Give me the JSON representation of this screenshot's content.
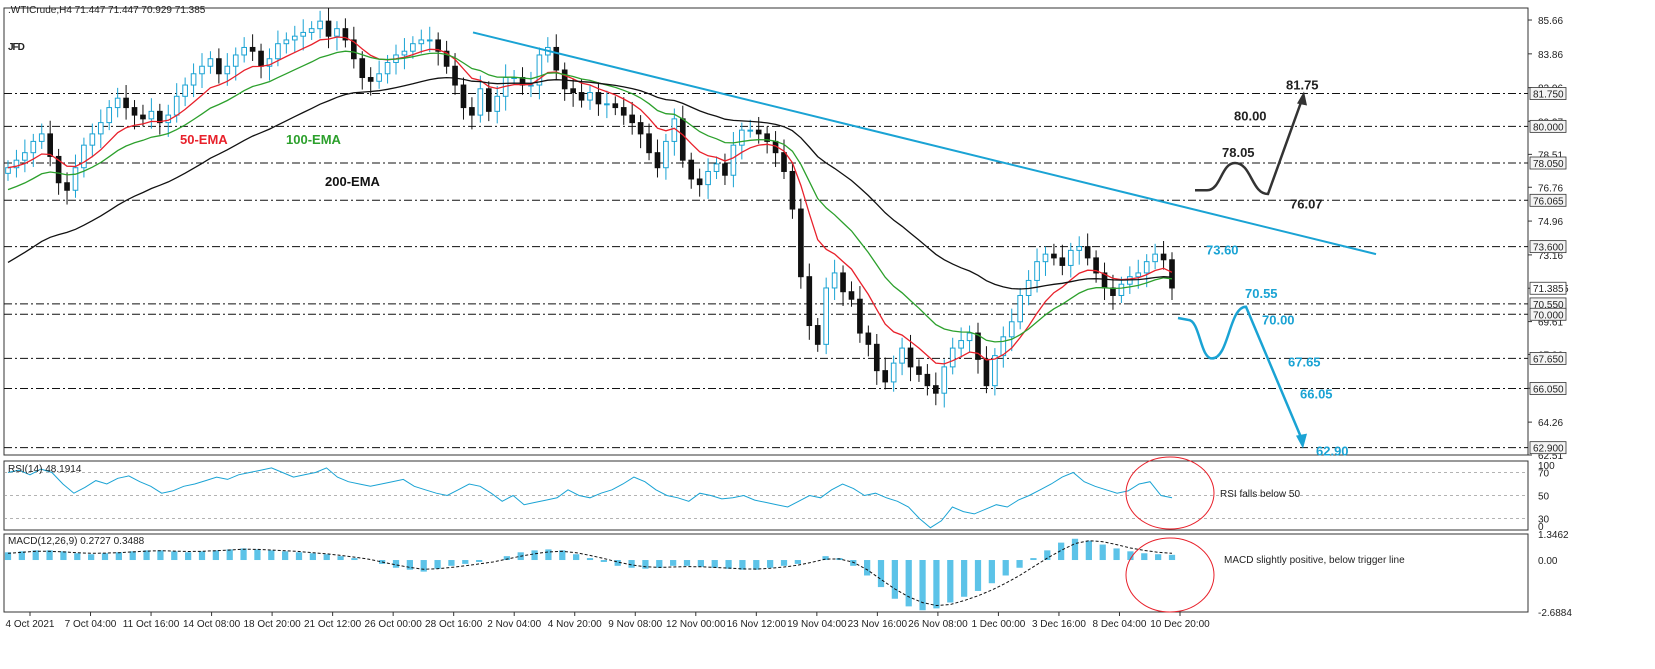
{
  "header": {
    "symbol_line": ".WTICrude,H4  71.447 71.447 70.929 71.385",
    "logo": "JFD"
  },
  "chart_data": [
    {
      "panel": "price",
      "type": "candlestick",
      "symbol": ".WTICrude",
      "timeframe": "H4",
      "ohlc_last": {
        "open": 71.447,
        "high": 71.447,
        "low": 70.929,
        "close": 71.385
      },
      "ylim": [
        62.51,
        86.3
      ],
      "y_ticks": [
        85.66,
        83.86,
        82.06,
        80.27,
        78.51,
        76.76,
        74.96,
        73.16,
        71.385,
        69.61,
        67.86,
        66.06,
        64.26,
        62.51
      ],
      "x_tick_labels": [
        "4 Oct 2021",
        "7 Oct 04:00",
        "11 Oct 16:00",
        "14 Oct 08:00",
        "18 Oct 20:00",
        "21 Oct 12:00",
        "26 Oct 00:00",
        "28 Oct 16:00",
        "2 Nov 04:00",
        "4 Nov 20:00",
        "9 Nov 08:00",
        "12 Nov 00:00",
        "16 Nov 12:00",
        "19 Nov 04:00",
        "23 Nov 16:00",
        "26 Nov 08:00",
        "1 Dec 00:00",
        "3 Dec 16:00",
        "8 Dec 04:00",
        "10 Dec 20:00"
      ],
      "close_path": [
        77.8,
        78.2,
        78.6,
        79.2,
        79.6,
        78.4,
        77.0,
        76.6,
        77.8,
        79.0,
        79.6,
        80.2,
        81.0,
        81.5,
        81.0,
        80.6,
        80.4,
        80.8,
        80.2,
        80.6,
        81.6,
        82.2,
        82.8,
        83.2,
        83.6,
        82.8,
        83.2,
        83.8,
        84.2,
        84.0,
        83.2,
        83.6,
        84.4,
        84.6,
        84.8,
        85.0,
        85.2,
        85.6,
        84.8,
        85.2,
        84.6,
        83.6,
        82.6,
        82.4,
        82.8,
        83.4,
        83.8,
        84.0,
        84.4,
        84.6,
        84.6,
        84.0,
        83.2,
        82.2,
        81.0,
        80.6,
        82.0,
        80.8,
        81.6,
        82.6,
        82.6,
        82.2,
        82.2,
        83.8,
        84.2,
        83.0,
        82.0,
        81.8,
        81.4,
        81.8,
        81.2,
        81.2,
        81.0,
        80.6,
        80.2,
        79.6,
        78.6,
        77.8,
        79.2,
        80.4,
        78.2,
        77.2,
        76.9,
        77.6,
        78.0,
        77.4,
        79.0,
        79.8,
        79.8,
        79.6,
        79.2,
        78.6,
        77.6,
        75.6,
        72.0,
        69.4,
        68.4,
        71.4,
        72.2,
        71.2,
        70.8,
        69.0,
        68.4,
        67.0,
        66.4,
        67.4,
        68.2,
        67.2,
        66.8,
        66.2,
        65.8,
        67.2,
        68.2,
        68.6,
        69.0,
        67.6,
        66.2,
        67.8,
        68.8,
        69.6,
        71.0,
        71.8,
        72.8,
        73.2,
        73.0,
        72.6,
        73.4,
        73.6,
        73.0,
        72.2,
        71.4,
        71.0,
        71.6,
        72.0,
        72.2,
        72.8,
        73.2,
        72.9,
        71.4
      ],
      "levels": [
        {
          "value": 81.75,
          "axis_label": "81.750",
          "annotation": "81.75",
          "color": "#222222"
        },
        {
          "value": 80.0,
          "axis_label": "80.000",
          "annotation": "80.00",
          "color": "#222222"
        },
        {
          "value": 78.05,
          "axis_label": "78.050",
          "annotation": "78.05",
          "color": "#222222"
        },
        {
          "value": 76.065,
          "axis_label": "76.065",
          "annotation": "76.07",
          "color": "#222222"
        },
        {
          "value": 73.6,
          "axis_label": "73.600",
          "annotation": "73.60",
          "color": "#1aa3d4"
        },
        {
          "value": 70.55,
          "axis_label": "70.550",
          "annotation": "70.55",
          "color": "#1aa3d4"
        },
        {
          "value": 70.0,
          "axis_label": "70.000",
          "annotation": "70.00",
          "color": "#1aa3d4"
        },
        {
          "value": 67.65,
          "axis_label": "67.650",
          "annotation": "67.65",
          "color": "#1aa3d4"
        },
        {
          "value": 66.05,
          "axis_label": "66.050",
          "annotation": "66.05",
          "color": "#1aa3d4"
        },
        {
          "value": 62.9,
          "axis_label": "62.900",
          "annotation": "62.90",
          "color": "#1aa3d4"
        }
      ],
      "current_price_label": "71.385",
      "indicator_labels": [
        {
          "name": "50-EMA",
          "color": "#e8212b"
        },
        {
          "name": "100-EMA",
          "color": "#2ca02c"
        },
        {
          "name": "200-EMA",
          "color": "#111111"
        }
      ],
      "trendline": {
        "color": "#1aa3d4",
        "from_value": 85.0,
        "to_value": 73.2
      },
      "scenario_paths": [
        {
          "name": "bullish",
          "color": "#333333",
          "points": [
            76.6,
            76.6,
            78.05,
            76.4,
            81.75
          ]
        },
        {
          "name": "bearish",
          "color": "#1aa3d4",
          "points": [
            69.8,
            69.7,
            67.65,
            70.4,
            62.9
          ]
        }
      ],
      "colors": {
        "bull_candle": "#1aa3d4",
        "bear_candle": "#111111"
      }
    },
    {
      "panel": "rsi",
      "type": "line",
      "label": "RSI(14) 48.1914",
      "ylim": [
        20,
        80
      ],
      "y_ticks": [
        70,
        50,
        30
      ],
      "y_tick_labels": [
        "70",
        "50",
        "30"
      ],
      "y_extra_tick_labels": [
        "100",
        "0"
      ],
      "values": [
        70,
        72,
        68,
        73,
        70,
        60,
        52,
        57,
        63,
        60,
        65,
        67,
        62,
        58,
        52,
        54,
        58,
        60,
        63,
        66,
        64,
        68,
        70,
        72,
        74,
        70,
        66,
        68,
        70,
        74,
        66,
        62,
        60,
        58,
        60,
        62,
        64,
        58,
        55,
        52,
        50,
        55,
        60,
        58,
        52,
        45,
        50,
        42,
        44,
        46,
        48,
        55,
        50,
        48,
        52,
        55,
        60,
        66,
        62,
        55,
        50,
        48,
        45,
        52,
        50,
        47,
        48,
        50,
        46,
        44,
        42,
        40,
        45,
        50,
        48,
        55,
        60,
        56,
        50,
        52,
        48,
        45,
        40,
        30,
        22,
        28,
        40,
        36,
        34,
        38,
        42,
        40,
        46,
        50,
        55,
        60,
        66,
        70,
        62,
        58,
        55,
        52,
        54,
        60,
        62,
        50,
        48
      ],
      "annotation": {
        "text": "RSI falls below 50",
        "color": "#e8212b"
      }
    },
    {
      "panel": "macd",
      "type": "histogram+line",
      "label": "MACD(12,26,9) 0.2727 0.3488",
      "ylim": [
        -2.6884,
        1.3462
      ],
      "y_ticks": [
        1.3462,
        0.0,
        -2.6884
      ],
      "y_tick_labels": [
        "1.3462",
        "0.00",
        "-2.6884"
      ],
      "hist": [
        0.4,
        0.45,
        0.5,
        0.5,
        0.45,
        0.35,
        0.3,
        0.35,
        0.4,
        0.45,
        0.5,
        0.5,
        0.45,
        0.4,
        0.45,
        0.5,
        0.55,
        0.6,
        0.55,
        0.5,
        0.45,
        0.4,
        0.35,
        0.3,
        0.2,
        0.1,
        0.0,
        -0.2,
        -0.4,
        -0.5,
        -0.6,
        -0.45,
        -0.3,
        -0.2,
        -0.1,
        0.0,
        0.2,
        0.4,
        0.5,
        0.55,
        0.5,
        0.3,
        0.1,
        -0.1,
        -0.3,
        -0.4,
        -0.45,
        -0.4,
        -0.3,
        -0.3,
        -0.35,
        -0.4,
        -0.45,
        -0.5,
        -0.5,
        -0.4,
        -0.3,
        -0.2,
        0.0,
        0.2,
        0.1,
        -0.3,
        -0.8,
        -1.4,
        -2.0,
        -2.4,
        -2.6,
        -2.5,
        -2.2,
        -1.9,
        -1.6,
        -1.2,
        -0.8,
        -0.4,
        0.1,
        0.5,
        0.9,
        1.1,
        1.0,
        0.8,
        0.6,
        0.45,
        0.35,
        0.3,
        0.27
      ],
      "signal": [
        0.35,
        0.4,
        0.45,
        0.45,
        0.42,
        0.38,
        0.35,
        0.36,
        0.38,
        0.42,
        0.46,
        0.48,
        0.46,
        0.44,
        0.45,
        0.48,
        0.52,
        0.56,
        0.55,
        0.52,
        0.48,
        0.44,
        0.38,
        0.32,
        0.24,
        0.15,
        0.05,
        -0.1,
        -0.25,
        -0.38,
        -0.48,
        -0.45,
        -0.38,
        -0.3,
        -0.2,
        -0.1,
        0.05,
        0.2,
        0.32,
        0.42,
        0.45,
        0.38,
        0.24,
        0.08,
        -0.1,
        -0.25,
        -0.35,
        -0.38,
        -0.36,
        -0.34,
        -0.35,
        -0.38,
        -0.42,
        -0.46,
        -0.47,
        -0.43,
        -0.36,
        -0.27,
        -0.12,
        0.05,
        0.06,
        -0.12,
        -0.5,
        -1.0,
        -1.5,
        -1.9,
        -2.2,
        -2.35,
        -2.3,
        -2.1,
        -1.85,
        -1.55,
        -1.2,
        -0.8,
        -0.35,
        0.1,
        0.5,
        0.85,
        1.0,
        0.95,
        0.8,
        0.62,
        0.5,
        0.4,
        0.35
      ],
      "annotation": {
        "text": "MACD slightly positive, below trigger line",
        "color": "#e8212b"
      }
    }
  ]
}
